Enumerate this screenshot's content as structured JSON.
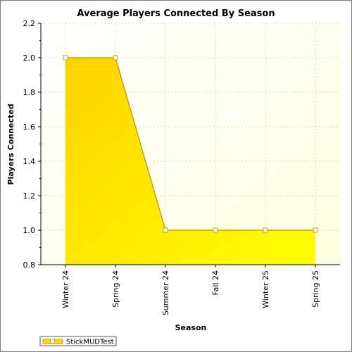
{
  "chart_data": {
    "type": "area",
    "title": "Average Players Connected By Season",
    "xlabel": "Season",
    "ylabel": "Players Connected",
    "categories": [
      "Winter 24",
      "Spring 24",
      "Summer 24",
      "Fall 24",
      "Winter 25",
      "Spring 25"
    ],
    "series": [
      {
        "name": "StickMUDTest",
        "values": [
          2.0,
          2.0,
          1.0,
          1.0,
          1.0,
          1.0
        ]
      }
    ],
    "ylim": [
      0.8,
      2.2
    ],
    "yticks": [
      "0.8",
      "1.0",
      "1.2",
      "1.4",
      "1.6",
      "1.8",
      "2.0",
      "2.2"
    ],
    "grid": true,
    "legend_position": "bottom-left",
    "colors": {
      "area_top": "#ffd700",
      "area_bottom": "#ffff00",
      "line": "#c8a000",
      "plot_bg_light": "#ffffe8",
      "plot_bg": "#fffff5"
    }
  }
}
